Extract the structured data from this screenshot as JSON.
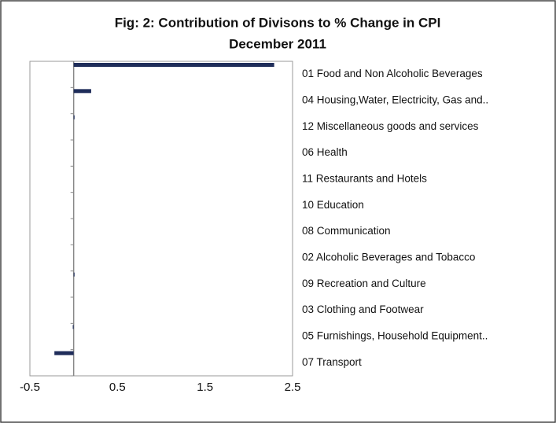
{
  "chart_data": {
    "type": "barh",
    "title_lines": [
      "Fig: 2: Contribution of Divisons to % Change in CPI",
      "December 2011"
    ],
    "categories": [
      "01 Food and Non Alcoholic Beverages",
      "04 Housing,Water, Electricity, Gas and..",
      "12 Miscellaneous goods and services",
      "06 Health",
      "11 Restaurants and Hotels",
      "10 Education",
      "08 Communication",
      "02 Alcoholic Beverages and Tobacco",
      "09 Recreation and Culture",
      "03 Clothing and Footwear",
      "05 Furnishings, Household Equipment..",
      "07 Transport"
    ],
    "values": [
      2.29,
      0.2,
      0.01,
      0,
      0,
      0,
      0,
      0,
      0.01,
      0,
      -0.01,
      -0.22
    ],
    "color": "#1f2d5a",
    "xlim": [
      -0.5,
      2.5
    ],
    "xticks": [
      -0.5,
      0.5,
      1.5,
      2.5
    ]
  }
}
